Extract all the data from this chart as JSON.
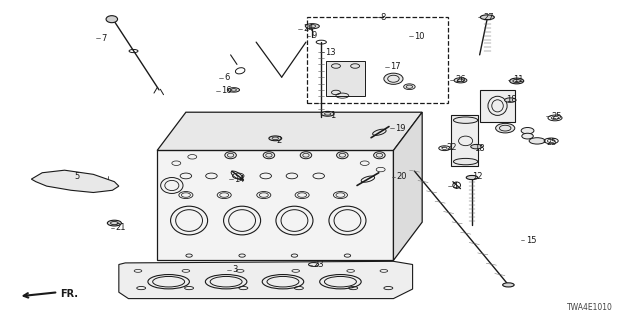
{
  "background_color": "#ffffff",
  "line_color": "#1a1a1a",
  "diagram_code": "TWA4E1010",
  "figsize": [
    6.4,
    3.2
  ],
  "dpi": 100,
  "label_fs": 6.0,
  "labels": {
    "1": [
      0.52,
      0.638,
      "left"
    ],
    "2": [
      0.432,
      0.56,
      "left"
    ],
    "3": [
      0.368,
      0.158,
      "left"
    ],
    "4": [
      0.71,
      0.42,
      "left"
    ],
    "5": [
      0.118,
      0.435,
      "left"
    ],
    "6": [
      0.352,
      0.748,
      "left"
    ],
    "7": [
      0.195,
      0.87,
      "left"
    ],
    "8": [
      0.6,
      0.942,
      "left"
    ],
    "9": [
      0.535,
      0.88,
      "left"
    ],
    "10": [
      0.65,
      0.885,
      "left"
    ],
    "11": [
      0.8,
      0.74,
      "left"
    ],
    "12": [
      0.735,
      0.445,
      "left"
    ],
    "13": [
      0.518,
      0.838,
      "left"
    ],
    "14": [
      0.368,
      0.442,
      "left"
    ],
    "15": [
      0.825,
      0.248,
      "left"
    ],
    "16": [
      0.358,
      0.71,
      "left"
    ],
    "17": [
      0.618,
      0.79,
      "left"
    ],
    "18a": [
      0.79,
      0.68,
      "left"
    ],
    "18b": [
      0.738,
      0.53,
      "left"
    ],
    "19": [
      0.618,
      0.59,
      "left"
    ],
    "20": [
      0.622,
      0.44,
      "left"
    ],
    "21": [
      0.175,
      0.29,
      "left"
    ],
    "22": [
      0.7,
      0.53,
      "left"
    ],
    "23": [
      0.498,
      0.175,
      "left"
    ],
    "24": [
      0.49,
      0.9,
      "left"
    ],
    "25a": [
      0.87,
      0.62,
      "left"
    ],
    "25b": [
      0.858,
      0.548,
      "left"
    ],
    "26": [
      0.715,
      0.74,
      "left"
    ],
    "27": [
      0.758,
      0.94,
      "left"
    ]
  }
}
